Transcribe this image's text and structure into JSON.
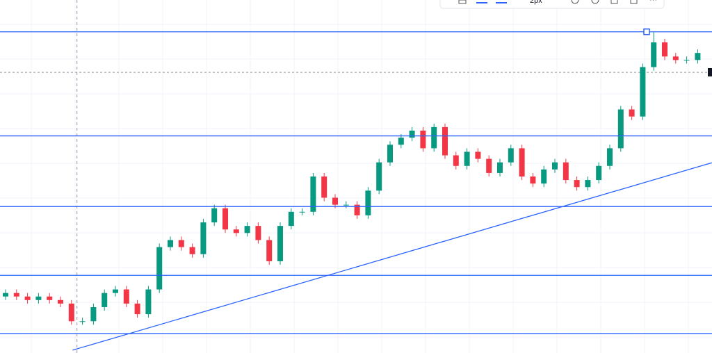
{
  "toolbar": {
    "width_label": "2px"
  },
  "chart_data": {
    "type": "candlestick",
    "ylim": [
      0,
      100
    ],
    "up_color": "#089981",
    "down_color": "#f23645",
    "line_color": "#2962ff",
    "open": [
      16,
      17,
      16,
      15,
      16,
      15,
      14,
      9,
      9,
      13,
      17,
      18,
      14,
      11,
      18,
      30,
      32,
      30,
      28,
      37,
      41,
      35,
      34,
      36,
      32,
      26,
      36,
      40,
      40,
      50,
      44,
      42,
      42,
      39,
      46,
      54,
      59,
      61,
      63,
      58,
      64,
      56,
      53,
      57,
      55,
      51,
      54,
      58,
      50,
      48,
      52,
      54,
      49,
      47,
      49,
      53,
      58,
      69,
      67,
      81,
      88,
      84,
      83,
      83
    ],
    "high": [
      18,
      18,
      17,
      17,
      17,
      16,
      15,
      10,
      14,
      18,
      19,
      19,
      15,
      19,
      31,
      33,
      33,
      31,
      38,
      42,
      42,
      36,
      37,
      37,
      33,
      37,
      41,
      41,
      51,
      51,
      45,
      43,
      43,
      47,
      55,
      60,
      62,
      64,
      64,
      65,
      65,
      57,
      58,
      58,
      56,
      55,
      59,
      59,
      51,
      53,
      55,
      55,
      50,
      50,
      54,
      59,
      70,
      70,
      82,
      91,
      89,
      85,
      84,
      86
    ],
    "low": [
      15,
      15,
      14,
      14,
      14,
      13,
      8,
      8,
      8,
      12,
      16,
      13,
      10,
      10,
      17,
      29,
      29,
      27,
      27,
      36,
      34,
      33,
      33,
      31,
      25,
      25,
      35,
      39,
      39,
      43,
      41,
      41,
      38,
      38,
      45,
      53,
      58,
      60,
      57,
      57,
      55,
      52,
      52,
      54,
      50,
      50,
      53,
      49,
      47,
      47,
      51,
      48,
      46,
      46,
      48,
      52,
      57,
      66,
      66,
      80,
      83,
      82,
      82,
      82
    ],
    "close": [
      17,
      16,
      15,
      16,
      15,
      14,
      9,
      9,
      13,
      17,
      18,
      14,
      11,
      18,
      30,
      32,
      30,
      28,
      37,
      41,
      35,
      34,
      36,
      32,
      26,
      36,
      40,
      40,
      50,
      44,
      42,
      42,
      39,
      46,
      54,
      59,
      61,
      63,
      58,
      64,
      56,
      53,
      57,
      55,
      51,
      54,
      58,
      50,
      48,
      52,
      54,
      49,
      47,
      49,
      53,
      58,
      69,
      67,
      81,
      88,
      84,
      83,
      83,
      85
    ],
    "horizontal_lines": [
      91,
      61.5,
      41.5,
      22,
      5.5
    ],
    "price_line": 79.5,
    "crosshair_x": 6.5,
    "trendline": {
      "x": [
        6.1,
        64.3
      ],
      "y": [
        0.8,
        53.9
      ]
    }
  }
}
